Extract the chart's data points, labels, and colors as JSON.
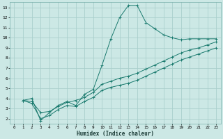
{
  "background_color": "#cce8e5",
  "grid_color": "#aacfcc",
  "line_color": "#1a7a6e",
  "xlabel": "Humidex (Indice chaleur)",
  "xlim": [
    -0.5,
    23.5
  ],
  "ylim": [
    1.5,
    13.5
  ],
  "xticks": [
    0,
    1,
    2,
    3,
    4,
    5,
    6,
    7,
    8,
    9,
    10,
    11,
    12,
    13,
    14,
    15,
    16,
    17,
    18,
    19,
    20,
    21,
    22,
    23
  ],
  "yticks": [
    2,
    3,
    4,
    5,
    6,
    7,
    8,
    9,
    10,
    11,
    12,
    13
  ],
  "series": [
    {
      "x": [
        1,
        2,
        3,
        4,
        5,
        6,
        7,
        8,
        9,
        10,
        11,
        12,
        13,
        14,
        15,
        16,
        17,
        18,
        19,
        20,
        21,
        22,
        23
      ],
      "y": [
        3.8,
        4.0,
        1.8,
        2.6,
        3.3,
        3.7,
        3.3,
        4.4,
        4.9,
        7.3,
        9.9,
        12.0,
        13.2,
        13.2,
        11.5,
        10.9,
        10.3,
        10.0,
        9.8,
        9.9,
        9.9,
        9.9,
        9.9
      ]
    },
    {
      "x": [
        1,
        2,
        3,
        4,
        5,
        6,
        7,
        8,
        9,
        10,
        11,
        12,
        13,
        14,
        15,
        16,
        17,
        18,
        19,
        20,
        21,
        22,
        23
      ],
      "y": [
        3.8,
        3.7,
        2.6,
        2.7,
        3.2,
        3.6,
        3.8,
        4.1,
        4.6,
        5.4,
        5.7,
        6.0,
        6.2,
        6.5,
        6.9,
        7.3,
        7.7,
        8.1,
        8.5,
        8.8,
        9.0,
        9.3,
        9.6
      ]
    },
    {
      "x": [
        1,
        2,
        3,
        4,
        5,
        6,
        7,
        8,
        9,
        10,
        11,
        12,
        13,
        14,
        15,
        16,
        17,
        18,
        19,
        20,
        21,
        22,
        23
      ],
      "y": [
        3.8,
        3.5,
        2.0,
        2.3,
        2.9,
        3.3,
        3.2,
        3.7,
        4.1,
        4.8,
        5.1,
        5.3,
        5.5,
        5.8,
        6.2,
        6.6,
        7.0,
        7.4,
        7.8,
        8.1,
        8.4,
        8.7,
        9.0
      ]
    }
  ]
}
